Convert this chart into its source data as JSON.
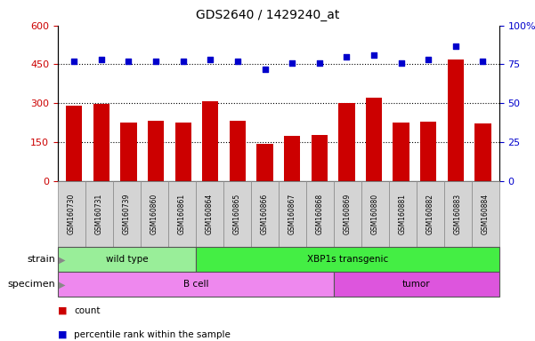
{
  "title": "GDS2640 / 1429240_at",
  "samples": [
    "GSM160730",
    "GSM160731",
    "GSM160739",
    "GSM160860",
    "GSM160861",
    "GSM160864",
    "GSM160865",
    "GSM160866",
    "GSM160867",
    "GSM160868",
    "GSM160869",
    "GSM160880",
    "GSM160881",
    "GSM160882",
    "GSM160883",
    "GSM160884"
  ],
  "counts": [
    290,
    297,
    225,
    233,
    224,
    307,
    233,
    143,
    175,
    178,
    300,
    320,
    224,
    228,
    470,
    220
  ],
  "percentiles": [
    77,
    78,
    77,
    77,
    77,
    78,
    77,
    72,
    76,
    76,
    80,
    81,
    76,
    78,
    87,
    77
  ],
  "ylim_left": [
    0,
    600
  ],
  "ylim_right": [
    0,
    100
  ],
  "yticks_left": [
    0,
    150,
    300,
    450,
    600
  ],
  "yticks_right": [
    0,
    25,
    50,
    75,
    100
  ],
  "bar_color": "#cc0000",
  "dot_color": "#0000cc",
  "strain_groups": [
    {
      "label": "wild type",
      "start": 0,
      "end": 5,
      "color": "#99ee99"
    },
    {
      "label": "XBP1s transgenic",
      "start": 5,
      "end": 16,
      "color": "#44ee44"
    }
  ],
  "specimen_groups": [
    {
      "label": "B cell",
      "start": 0,
      "end": 10,
      "color": "#ee88ee"
    },
    {
      "label": "tumor",
      "start": 10,
      "end": 16,
      "color": "#dd55dd"
    }
  ],
  "legend_count_label": "count",
  "legend_percentile_label": "percentile rank within the sample",
  "strain_label": "strain",
  "specimen_label": "specimen",
  "tick_color_left": "#cc0000",
  "tick_color_right": "#0000cc",
  "dotted_grid": [
    150,
    300,
    450
  ]
}
